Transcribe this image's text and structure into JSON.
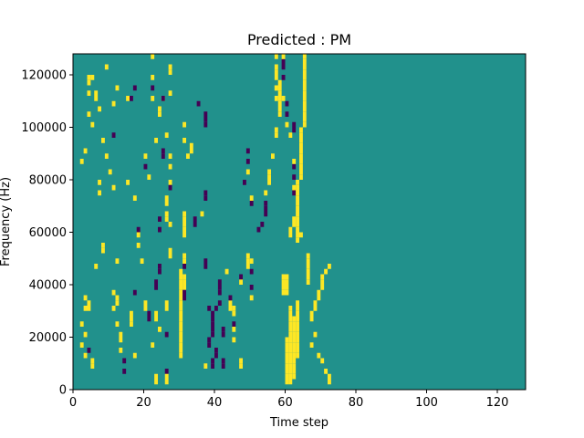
{
  "chart_data": {
    "type": "heatmap",
    "title": "Predicted : PM",
    "xlabel": "Time step",
    "ylabel": "Frequency (Hz)",
    "xlim": [
      0,
      128
    ],
    "ylim": [
      0,
      128000
    ],
    "xticks": [
      0,
      20,
      40,
      60,
      80,
      100,
      120
    ],
    "yticks": [
      0,
      20000,
      40000,
      60000,
      80000,
      100000,
      120000
    ],
    "xtick_labels": [
      "0",
      "20",
      "40",
      "60",
      "80",
      "100",
      "120"
    ],
    "ytick_labels": [
      "0",
      "20000",
      "40000",
      "60000",
      "80000",
      "100000",
      "120000"
    ],
    "colormap": "viridis",
    "value_levels": [
      -1,
      0,
      1
    ],
    "colors": {
      "-1": "#440154",
      "0": "#21918c",
      "1": "#fde725"
    },
    "background_value": 0,
    "row_height_hz": 2000,
    "cells": [
      [
        2,
        16,
        1
      ],
      [
        3,
        30,
        1
      ],
      [
        3,
        34,
        1
      ],
      [
        4,
        30,
        1
      ],
      [
        4,
        32,
        1
      ],
      [
        2,
        24,
        1
      ],
      [
        3,
        20,
        1
      ],
      [
        3,
        12,
        1
      ],
      [
        4,
        14,
        -1
      ],
      [
        5,
        8,
        1
      ],
      [
        5,
        10,
        1
      ],
      [
        2,
        86,
        1
      ],
      [
        3,
        90,
        1
      ],
      [
        4,
        104,
        1
      ],
      [
        5,
        100,
        1
      ],
      [
        4,
        112,
        1
      ],
      [
        4,
        118,
        1
      ],
      [
        5,
        118,
        1
      ],
      [
        9,
        122,
        1
      ],
      [
        4,
        116,
        1
      ],
      [
        7,
        106,
        1
      ],
      [
        6,
        46,
        1
      ],
      [
        7,
        74,
        1
      ],
      [
        7,
        78,
        1
      ],
      [
        8,
        54,
        1
      ],
      [
        8,
        52,
        1
      ],
      [
        6,
        110,
        1
      ],
      [
        6,
        112,
        1
      ],
      [
        8,
        94,
        1
      ],
      [
        9,
        88,
        1
      ],
      [
        10,
        82,
        1
      ],
      [
        11,
        76,
        1
      ],
      [
        11,
        108,
        1
      ],
      [
        12,
        114,
        1
      ],
      [
        11,
        96,
        -1
      ],
      [
        12,
        48,
        1
      ],
      [
        11,
        36,
        1
      ],
      [
        12,
        32,
        1
      ],
      [
        12,
        34,
        1
      ],
      [
        11,
        30,
        1
      ],
      [
        12,
        24,
        1
      ],
      [
        13,
        20,
        1
      ],
      [
        13,
        14,
        1
      ],
      [
        13,
        18,
        1
      ],
      [
        14,
        10,
        -1
      ],
      [
        14,
        6,
        -1
      ],
      [
        15,
        78,
        1
      ],
      [
        15,
        110,
        1
      ],
      [
        16,
        110,
        -1
      ],
      [
        16,
        24,
        1
      ],
      [
        16,
        26,
        1
      ],
      [
        16,
        28,
        1
      ],
      [
        17,
        12,
        1
      ],
      [
        17,
        36,
        -1
      ],
      [
        17,
        72,
        1
      ],
      [
        17,
        114,
        -1
      ],
      [
        18,
        54,
        1
      ],
      [
        18,
        58,
        1
      ],
      [
        18,
        60,
        -1
      ],
      [
        19,
        48,
        1
      ],
      [
        20,
        84,
        -1
      ],
      [
        20,
        88,
        1
      ],
      [
        20,
        30,
        1
      ],
      [
        20,
        32,
        1
      ],
      [
        21,
        26,
        -1
      ],
      [
        21,
        28,
        -1
      ],
      [
        21,
        80,
        1
      ],
      [
        22,
        110,
        1
      ],
      [
        22,
        114,
        -1
      ],
      [
        22,
        118,
        1
      ],
      [
        22,
        126,
        1
      ],
      [
        23,
        2,
        1
      ],
      [
        23,
        4,
        1
      ],
      [
        23,
        94,
        1
      ],
      [
        24,
        104,
        1
      ],
      [
        24,
        106,
        1
      ],
      [
        25,
        110,
        1
      ],
      [
        25,
        110,
        -1
      ],
      [
        25,
        88,
        -1
      ],
      [
        25,
        90,
        -1
      ],
      [
        26,
        96,
        1
      ],
      [
        27,
        88,
        1
      ],
      [
        27,
        84,
        1
      ],
      [
        27,
        78,
        1
      ],
      [
        27,
        76,
        -1
      ],
      [
        27,
        62,
        1
      ],
      [
        27,
        50,
        1
      ],
      [
        27,
        52,
        1
      ],
      [
        27,
        112,
        1
      ],
      [
        27,
        120,
        1
      ],
      [
        27,
        122,
        1
      ],
      [
        26,
        72,
        1
      ],
      [
        26,
        70,
        1
      ],
      [
        26,
        66,
        1
      ],
      [
        26,
        64,
        1
      ],
      [
        26,
        32,
        1
      ],
      [
        26,
        30,
        1
      ],
      [
        26,
        20,
        -1
      ],
      [
        26,
        6,
        -1
      ],
      [
        26,
        4,
        1
      ],
      [
        26,
        2,
        1
      ],
      [
        23,
        28,
        1
      ],
      [
        23,
        26,
        1
      ],
      [
        24,
        22,
        1
      ],
      [
        22,
        16,
        1
      ],
      [
        23,
        38,
        -1
      ],
      [
        23,
        40,
        -1
      ],
      [
        24,
        44,
        -1
      ],
      [
        24,
        46,
        -1
      ],
      [
        24,
        60,
        -1
      ],
      [
        24,
        64,
        -1
      ],
      [
        30,
        40,
        1
      ],
      [
        30,
        42,
        1
      ],
      [
        30,
        44,
        1
      ],
      [
        30,
        36,
        1
      ],
      [
        30,
        38,
        1
      ],
      [
        30,
        30,
        1
      ],
      [
        30,
        32,
        1
      ],
      [
        30,
        26,
        1
      ],
      [
        30,
        12,
        1
      ],
      [
        30,
        14,
        1
      ],
      [
        30,
        16,
        1
      ],
      [
        30,
        18,
        1
      ],
      [
        30,
        20,
        1
      ],
      [
        30,
        22,
        1
      ],
      [
        30,
        24,
        1
      ],
      [
        30,
        28,
        1
      ],
      [
        30,
        34,
        1
      ],
      [
        31,
        38,
        1
      ],
      [
        31,
        40,
        1
      ],
      [
        31,
        42,
        1
      ],
      [
        31,
        36,
        -1
      ],
      [
        31,
        34,
        -1
      ],
      [
        31,
        46,
        -1
      ],
      [
        31,
        48,
        1
      ],
      [
        31,
        50,
        1
      ],
      [
        31,
        58,
        1
      ],
      [
        31,
        60,
        1
      ],
      [
        31,
        62,
        1
      ],
      [
        31,
        64,
        1
      ],
      [
        31,
        66,
        1
      ],
      [
        31,
        94,
        1
      ],
      [
        31,
        100,
        1
      ],
      [
        32,
        88,
        1
      ],
      [
        33,
        90,
        1
      ],
      [
        33,
        92,
        1
      ],
      [
        34,
        64,
        -1
      ],
      [
        34,
        62,
        -1
      ],
      [
        35,
        108,
        -1
      ],
      [
        36,
        66,
        1
      ],
      [
        37,
        100,
        -1
      ],
      [
        37,
        104,
        -1
      ],
      [
        37,
        102,
        -1
      ],
      [
        37,
        74,
        -1
      ],
      [
        37,
        72,
        -1
      ],
      [
        37,
        46,
        -1
      ],
      [
        37,
        48,
        -1
      ],
      [
        37,
        8,
        1
      ],
      [
        38,
        16,
        -1
      ],
      [
        38,
        18,
        -1
      ],
      [
        38,
        30,
        -1
      ],
      [
        39,
        10,
        -1
      ],
      [
        39,
        8,
        -1
      ],
      [
        39,
        20,
        -1
      ],
      [
        39,
        22,
        -1
      ],
      [
        39,
        24,
        -1
      ],
      [
        39,
        26,
        -1
      ],
      [
        39,
        28,
        -1
      ],
      [
        40,
        30,
        -1
      ],
      [
        40,
        14,
        -1
      ],
      [
        40,
        12,
        -1
      ],
      [
        41,
        32,
        -1
      ],
      [
        41,
        36,
        -1
      ],
      [
        41,
        38,
        -1
      ],
      [
        41,
        40,
        -1
      ],
      [
        42,
        10,
        -1
      ],
      [
        42,
        8,
        -1
      ],
      [
        42,
        20,
        -1
      ],
      [
        42,
        22,
        -1
      ],
      [
        43,
        44,
        1
      ],
      [
        44,
        30,
        1
      ],
      [
        44,
        32,
        1
      ],
      [
        44,
        34,
        -1
      ],
      [
        45,
        18,
        1
      ],
      [
        45,
        22,
        1
      ],
      [
        45,
        24,
        -1
      ],
      [
        45,
        28,
        1
      ],
      [
        45,
        30,
        1
      ],
      [
        47,
        40,
        1
      ],
      [
        47,
        42,
        -1
      ],
      [
        47,
        10,
        1
      ],
      [
        47,
        8,
        1
      ],
      [
        48,
        78,
        -1
      ],
      [
        49,
        82,
        1
      ],
      [
        49,
        86,
        -1
      ],
      [
        49,
        90,
        -1
      ],
      [
        50,
        72,
        1
      ],
      [
        50,
        70,
        -1
      ],
      [
        49,
        46,
        1
      ],
      [
        49,
        48,
        1
      ],
      [
        49,
        50,
        1
      ],
      [
        50,
        48,
        1
      ],
      [
        50,
        34,
        1
      ],
      [
        50,
        38,
        -1
      ],
      [
        50,
        44,
        -1
      ],
      [
        52,
        60,
        -1
      ],
      [
        53,
        62,
        -1
      ],
      [
        54,
        66,
        -1
      ],
      [
        54,
        68,
        -1
      ],
      [
        54,
        70,
        -1
      ],
      [
        54,
        74,
        1
      ],
      [
        55,
        78,
        1
      ],
      [
        55,
        80,
        1
      ],
      [
        55,
        82,
        1
      ],
      [
        56,
        88,
        1
      ],
      [
        57,
        96,
        1
      ],
      [
        57,
        98,
        1
      ],
      [
        57,
        110,
        1
      ],
      [
        57,
        114,
        1
      ],
      [
        57,
        126,
        1
      ],
      [
        57,
        122,
        1
      ],
      [
        57,
        120,
        1
      ],
      [
        57,
        118,
        1
      ],
      [
        57,
        114,
        1
      ],
      [
        58,
        104,
        1
      ],
      [
        58,
        106,
        1
      ],
      [
        58,
        108,
        1
      ],
      [
        58,
        110,
        1
      ],
      [
        58,
        112,
        1
      ],
      [
        58,
        114,
        1
      ],
      [
        58,
        116,
        1
      ],
      [
        59,
        118,
        -1
      ],
      [
        59,
        122,
        -1
      ],
      [
        59,
        124,
        -1
      ],
      [
        59,
        126,
        1
      ],
      [
        59,
        110,
        1
      ],
      [
        60,
        108,
        -1
      ],
      [
        60,
        104,
        -1
      ],
      [
        60,
        100,
        1
      ],
      [
        61,
        96,
        1
      ],
      [
        62,
        98,
        -1
      ],
      [
        62,
        100,
        -1
      ],
      [
        62,
        76,
        1
      ],
      [
        62,
        74,
        -1
      ],
      [
        62,
        80,
        -1
      ],
      [
        62,
        84,
        -1
      ],
      [
        62,
        86,
        1
      ],
      [
        63,
        56,
        1
      ],
      [
        63,
        60,
        1
      ],
      [
        63,
        64,
        1
      ],
      [
        63,
        66,
        1
      ],
      [
        63,
        68,
        1
      ],
      [
        63,
        70,
        1
      ],
      [
        63,
        72,
        1
      ],
      [
        63,
        74,
        1
      ],
      [
        63,
        76,
        1
      ],
      [
        63,
        78,
        1
      ],
      [
        64,
        80,
        1
      ],
      [
        64,
        82,
        1
      ],
      [
        64,
        84,
        1
      ],
      [
        64,
        86,
        1
      ],
      [
        64,
        88,
        1
      ],
      [
        64,
        90,
        1
      ],
      [
        64,
        92,
        1
      ],
      [
        64,
        94,
        1
      ],
      [
        64,
        96,
        1
      ],
      [
        64,
        98,
        1
      ],
      [
        65,
        100,
        1
      ],
      [
        65,
        102,
        1
      ],
      [
        65,
        104,
        1
      ],
      [
        65,
        106,
        1
      ],
      [
        65,
        108,
        1
      ],
      [
        65,
        110,
        1
      ],
      [
        65,
        112,
        1
      ],
      [
        65,
        114,
        1
      ],
      [
        65,
        116,
        1
      ],
      [
        65,
        118,
        1
      ],
      [
        65,
        120,
        1
      ],
      [
        65,
        122,
        1
      ],
      [
        65,
        124,
        1
      ],
      [
        65,
        126,
        1
      ],
      [
        63,
        12,
        1
      ],
      [
        63,
        14,
        1
      ],
      [
        63,
        16,
        1
      ],
      [
        63,
        18,
        1
      ],
      [
        63,
        20,
        1
      ],
      [
        63,
        22,
        1
      ],
      [
        63,
        24,
        1
      ],
      [
        63,
        26,
        1
      ],
      [
        63,
        28,
        1
      ],
      [
        63,
        30,
        1
      ],
      [
        63,
        32,
        1
      ],
      [
        62,
        20,
        1
      ],
      [
        62,
        22,
        1
      ],
      [
        62,
        24,
        1
      ],
      [
        62,
        26,
        1
      ],
      [
        61,
        28,
        1
      ],
      [
        61,
        30,
        1
      ],
      [
        60,
        18,
        1
      ],
      [
        60,
        16,
        1
      ],
      [
        60,
        14,
        1
      ],
      [
        60,
        12,
        1
      ],
      [
        60,
        10,
        1
      ],
      [
        60,
        8,
        1
      ],
      [
        60,
        6,
        1
      ],
      [
        61,
        8,
        1
      ],
      [
        61,
        10,
        1
      ],
      [
        61,
        12,
        1
      ],
      [
        61,
        14,
        1
      ],
      [
        61,
        16,
        1
      ],
      [
        61,
        18,
        1
      ],
      [
        61,
        20,
        1
      ],
      [
        61,
        22,
        1
      ],
      [
        61,
        24,
        1
      ],
      [
        61,
        26,
        1
      ],
      [
        61,
        4,
        1
      ],
      [
        61,
        6,
        1
      ],
      [
        61,
        2,
        1
      ],
      [
        62,
        4,
        1
      ],
      [
        62,
        6,
        1
      ],
      [
        62,
        8,
        1
      ],
      [
        62,
        10,
        1
      ],
      [
        62,
        12,
        1
      ],
      [
        62,
        14,
        1
      ],
      [
        62,
        16,
        1
      ],
      [
        62,
        18,
        1
      ],
      [
        60,
        4,
        1
      ],
      [
        60,
        2,
        1
      ],
      [
        59,
        36,
        1
      ],
      [
        59,
        38,
        1
      ],
      [
        59,
        40,
        1
      ],
      [
        59,
        42,
        1
      ],
      [
        60,
        36,
        1
      ],
      [
        60,
        38,
        1
      ],
      [
        60,
        40,
        1
      ],
      [
        60,
        42,
        1
      ],
      [
        61,
        58,
        1
      ],
      [
        61,
        60,
        1
      ],
      [
        62,
        62,
        1
      ],
      [
        62,
        64,
        1
      ],
      [
        63,
        58,
        1
      ],
      [
        63,
        62,
        1
      ],
      [
        64,
        58,
        1
      ],
      [
        66,
        40,
        1
      ],
      [
        66,
        42,
        1
      ],
      [
        66,
        44,
        1
      ],
      [
        66,
        46,
        1
      ],
      [
        66,
        48,
        1
      ],
      [
        66,
        50,
        1
      ],
      [
        67,
        26,
        1
      ],
      [
        67,
        28,
        1
      ],
      [
        68,
        30,
        1
      ],
      [
        68,
        32,
        1
      ],
      [
        69,
        34,
        1
      ],
      [
        69,
        36,
        1
      ],
      [
        70,
        38,
        1
      ],
      [
        70,
        40,
        1
      ],
      [
        70,
        42,
        1
      ],
      [
        71,
        44,
        1
      ],
      [
        72,
        46,
        1
      ],
      [
        68,
        20,
        1
      ],
      [
        67,
        16,
        1
      ],
      [
        69,
        12,
        1
      ],
      [
        70,
        10,
        1
      ],
      [
        71,
        6,
        1
      ],
      [
        72,
        4,
        1
      ],
      [
        72,
        2,
        1
      ]
    ]
  }
}
